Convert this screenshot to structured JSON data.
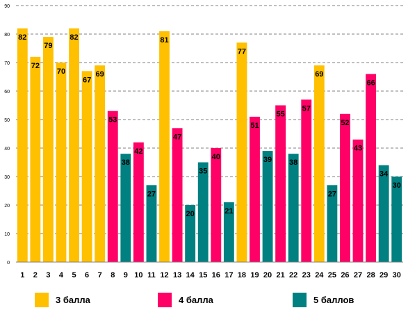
{
  "chart_data": {
    "type": "bar",
    "categories": [
      "1",
      "2",
      "3",
      "4",
      "5",
      "6",
      "7",
      "8",
      "9",
      "10",
      "11",
      "12",
      "13",
      "14",
      "15",
      "16",
      "17",
      "18",
      "19",
      "20",
      "21",
      "22",
      "23",
      "24",
      "25",
      "26",
      "27",
      "28",
      "29",
      "30"
    ],
    "values": [
      82,
      72,
      79,
      70,
      82,
      67,
      69,
      53,
      38,
      42,
      27,
      81,
      47,
      20,
      35,
      40,
      21,
      77,
      51,
      39,
      55,
      38,
      57,
      69,
      27,
      52,
      43,
      66,
      34,
      30
    ],
    "groups": [
      "g3",
      "g3",
      "g3",
      "g3",
      "g3",
      "g3",
      "g3",
      "g4",
      "g5",
      "g4",
      "g5",
      "g3",
      "g4",
      "g5",
      "g5",
      "g4",
      "g5",
      "g3",
      "g4",
      "g5",
      "g4",
      "g5",
      "g4",
      "g3",
      "g5",
      "g4",
      "g4",
      "g4",
      "g5",
      "g5"
    ],
    "yticks": [
      "0",
      "10",
      "20",
      "30",
      "40",
      "50",
      "60",
      "70",
      "80",
      "90"
    ],
    "ylim": [
      0,
      90
    ],
    "grid": true,
    "gridlines": "dashed",
    "legend_position": "bottom",
    "series": [
      {
        "key": "g3",
        "name": "3 балла",
        "color": "#FFC000"
      },
      {
        "key": "g4",
        "name": "4 балла",
        "color": "#FF0066"
      },
      {
        "key": "g5",
        "name": "5 баллов",
        "color": "#008080"
      }
    ]
  }
}
